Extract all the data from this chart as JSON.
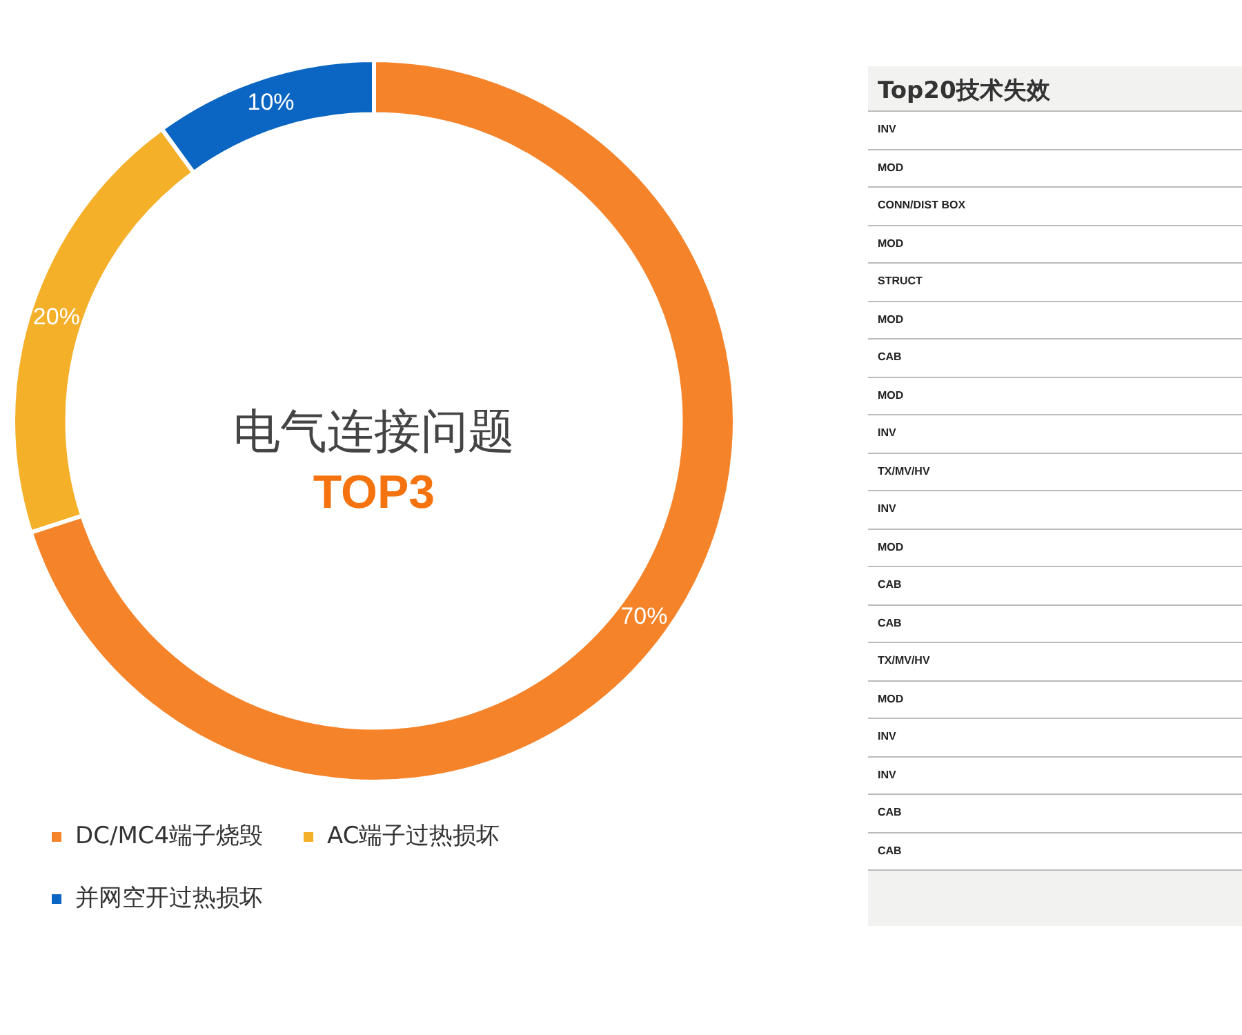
{
  "chart_data": [
    {
      "type": "donut",
      "categories": [
        "DC/MC4端子烧毁",
        "AC端子过热损坏",
        "并网空开过热损坏"
      ],
      "values": [
        70,
        20,
        10
      ],
      "colors": [
        "#f5832a",
        "#f5b02a",
        "#0a66c2"
      ],
      "value_labels": [
        "70%",
        "20%",
        "10%"
      ],
      "legend": "bottom",
      "annotations": [
        "电气连接问题",
        "TOP3"
      ]
    },
    {
      "type": "other",
      "title": "Top20技术失效",
      "annotations": [
        "INV",
        "MOD",
        "CONN/DIST BOX",
        "MOD",
        "STRUCT",
        "MOD",
        "CAB",
        "MOD",
        "INV",
        "TX/MV/HV",
        "INV",
        "MOD",
        "CAB",
        "CAB",
        "TX/MV/HV",
        "MOD",
        "INV",
        "INV",
        "CAB",
        "CAB"
      ]
    }
  ]
}
